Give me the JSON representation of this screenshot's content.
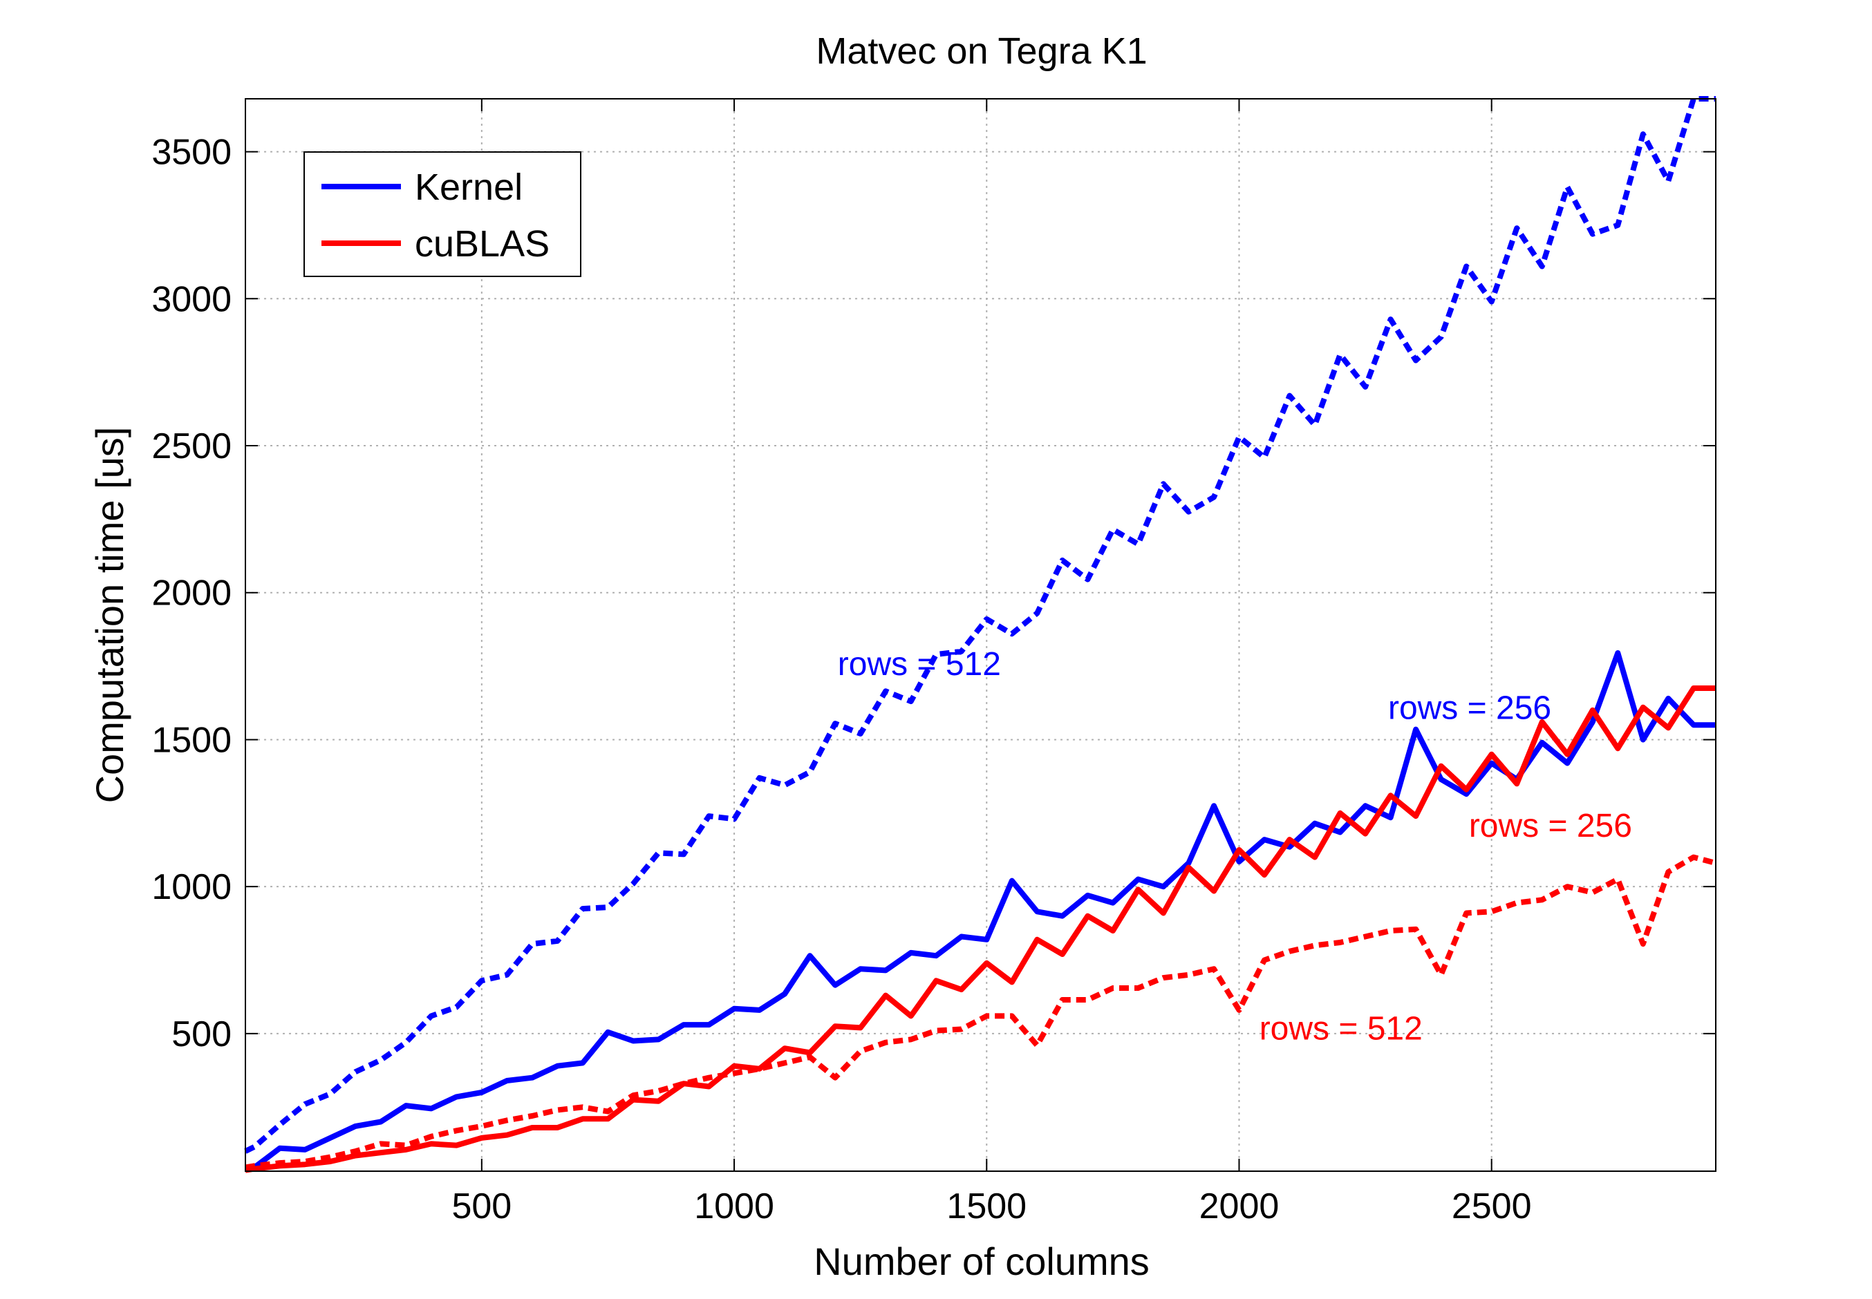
{
  "chart_data": {
    "type": "line",
    "title": "Matvec on Tegra K1",
    "xlabel": "Number of columns",
    "ylabel": "Computation time [us]",
    "xlim": [
      32,
      2944
    ],
    "ylim": [
      32,
      3680
    ],
    "xticks": [
      500,
      1000,
      1500,
      2000,
      2500
    ],
    "yticks": [
      500,
      1000,
      1500,
      2000,
      2500,
      3000,
      3500
    ],
    "grid": true,
    "legend": {
      "placement": "top-left",
      "entries": [
        {
          "label": "Kernel",
          "color": "#0000ff"
        },
        {
          "label": "cuBLAS",
          "color": "#ff0000"
        }
      ]
    },
    "series": [
      {
        "legend": "Kernel",
        "color": "#0000ff",
        "style": "solid",
        "x": [
          32,
          50,
          100,
          150,
          200,
          250,
          300,
          350,
          400,
          450,
          500,
          550,
          600,
          650,
          700,
          750,
          800,
          850,
          900,
          950,
          1000,
          1050,
          1100,
          1150,
          1200,
          1250,
          1300,
          1350,
          1400,
          1450,
          1500,
          1550,
          1600,
          1650,
          1700,
          1750,
          1800,
          1850,
          1900,
          1950,
          2000,
          2050,
          2100,
          2150,
          2200,
          2250,
          2300,
          2350,
          2400,
          2450,
          2500,
          2550,
          2600,
          2650,
          2700,
          2750,
          2800,
          2850,
          2900,
          2944
        ],
        "y": [
          40,
          45,
          110,
          105,
          145,
          185,
          200,
          255,
          245,
          285,
          300,
          340,
          350,
          390,
          400,
          505,
          475,
          480,
          530,
          530,
          585,
          580,
          635,
          765,
          665,
          720,
          715,
          775,
          765,
          830,
          820,
          1020,
          915,
          900,
          970,
          945,
          1025,
          1000,
          1080,
          1275,
          1085,
          1160,
          1135,
          1215,
          1185,
          1275,
          1235,
          1535,
          1365,
          1315,
          1420,
          1365,
          1490,
          1420,
          1560,
          1795,
          1500,
          1640,
          1550,
          1550
        ]
      },
      {
        "legend": "Kernel",
        "color": "#0000ff",
        "style": "dashed",
        "x": [
          32,
          50,
          100,
          150,
          200,
          250,
          300,
          350,
          400,
          450,
          500,
          550,
          600,
          650,
          700,
          750,
          800,
          850,
          900,
          950,
          1000,
          1050,
          1100,
          1150,
          1200,
          1250,
          1300,
          1350,
          1400,
          1450,
          1500,
          1550,
          1600,
          1650,
          1700,
          1750,
          1800,
          1850,
          1900,
          1950,
          2000,
          2050,
          2100,
          2150,
          2200,
          2250,
          2300,
          2350,
          2400,
          2450,
          2500,
          2550,
          2600,
          2650,
          2700,
          2750,
          2800,
          2850,
          2900,
          2944
        ],
        "y": [
          100,
          115,
          190,
          260,
          295,
          370,
          410,
          470,
          560,
          590,
          680,
          700,
          805,
          815,
          925,
          930,
          1010,
          1115,
          1110,
          1240,
          1230,
          1370,
          1345,
          1390,
          1555,
          1520,
          1665,
          1630,
          1790,
          1800,
          1910,
          1860,
          1930,
          2110,
          2045,
          2215,
          2165,
          2370,
          2275,
          2325,
          2530,
          2460,
          2670,
          2570,
          2810,
          2700,
          2930,
          2790,
          2870,
          3110,
          2990,
          3240,
          3110,
          3380,
          3220,
          3250,
          3560,
          3400,
          3680,
          3680
        ]
      },
      {
        "legend": "cuBLAS",
        "color": "#ff0000",
        "style": "solid",
        "x": [
          32,
          50,
          100,
          150,
          200,
          250,
          300,
          350,
          400,
          450,
          500,
          550,
          600,
          650,
          700,
          750,
          800,
          850,
          900,
          950,
          1000,
          1050,
          1100,
          1150,
          1200,
          1250,
          1300,
          1350,
          1400,
          1450,
          1500,
          1550,
          1600,
          1650,
          1700,
          1750,
          1800,
          1850,
          1900,
          1950,
          2000,
          2050,
          2100,
          2150,
          2200,
          2250,
          2300,
          2350,
          2400,
          2450,
          2500,
          2550,
          2600,
          2650,
          2700,
          2750,
          2800,
          2850,
          2900,
          2944
        ],
        "y": [
          35,
          40,
          50,
          55,
          65,
          85,
          95,
          105,
          125,
          120,
          145,
          155,
          180,
          180,
          210,
          210,
          275,
          270,
          330,
          320,
          390,
          380,
          450,
          435,
          525,
          520,
          630,
          560,
          680,
          650,
          740,
          675,
          820,
          770,
          900,
          850,
          990,
          910,
          1065,
          985,
          1125,
          1040,
          1160,
          1100,
          1250,
          1180,
          1310,
          1240,
          1410,
          1330,
          1450,
          1350,
          1560,
          1450,
          1600,
          1470,
          1610,
          1540,
          1675,
          1675
        ]
      },
      {
        "legend": "cuBLAS",
        "color": "#ff0000",
        "style": "dashed",
        "x": [
          32,
          50,
          100,
          150,
          200,
          250,
          300,
          350,
          400,
          450,
          500,
          550,
          600,
          650,
          700,
          750,
          800,
          850,
          900,
          950,
          1000,
          1050,
          1100,
          1150,
          1200,
          1250,
          1300,
          1350,
          1400,
          1450,
          1500,
          1550,
          1600,
          1650,
          1700,
          1750,
          1800,
          1850,
          1900,
          1950,
          2000,
          2050,
          2100,
          2150,
          2200,
          2250,
          2300,
          2350,
          2400,
          2450,
          2500,
          2550,
          2600,
          2650,
          2700,
          2750,
          2800,
          2850,
          2900,
          2944
        ],
        "y": [
          45,
          50,
          60,
          65,
          80,
          100,
          125,
          120,
          150,
          170,
          185,
          205,
          220,
          240,
          250,
          235,
          290,
          305,
          330,
          350,
          365,
          380,
          400,
          420,
          350,
          440,
          470,
          480,
          510,
          515,
          560,
          560,
          460,
          615,
          615,
          655,
          655,
          690,
          700,
          720,
          580,
          750,
          780,
          800,
          810,
          830,
          850,
          855,
          700,
          910,
          915,
          945,
          955,
          1000,
          980,
          1025,
          805,
          1050,
          1100,
          1080
        ]
      }
    ],
    "annotations": [
      {
        "text": "rows = 512",
        "color": "#0000ff",
        "x": 1205,
        "y": 1720
      },
      {
        "text": "rows = 256",
        "color": "#0000ff",
        "x": 2295,
        "y": 1570
      },
      {
        "text": "rows = 256",
        "color": "#ff0000",
        "x": 2455,
        "y": 1170
      },
      {
        "text": "rows = 512",
        "color": "#ff0000",
        "x": 2040,
        "y": 480
      }
    ]
  }
}
